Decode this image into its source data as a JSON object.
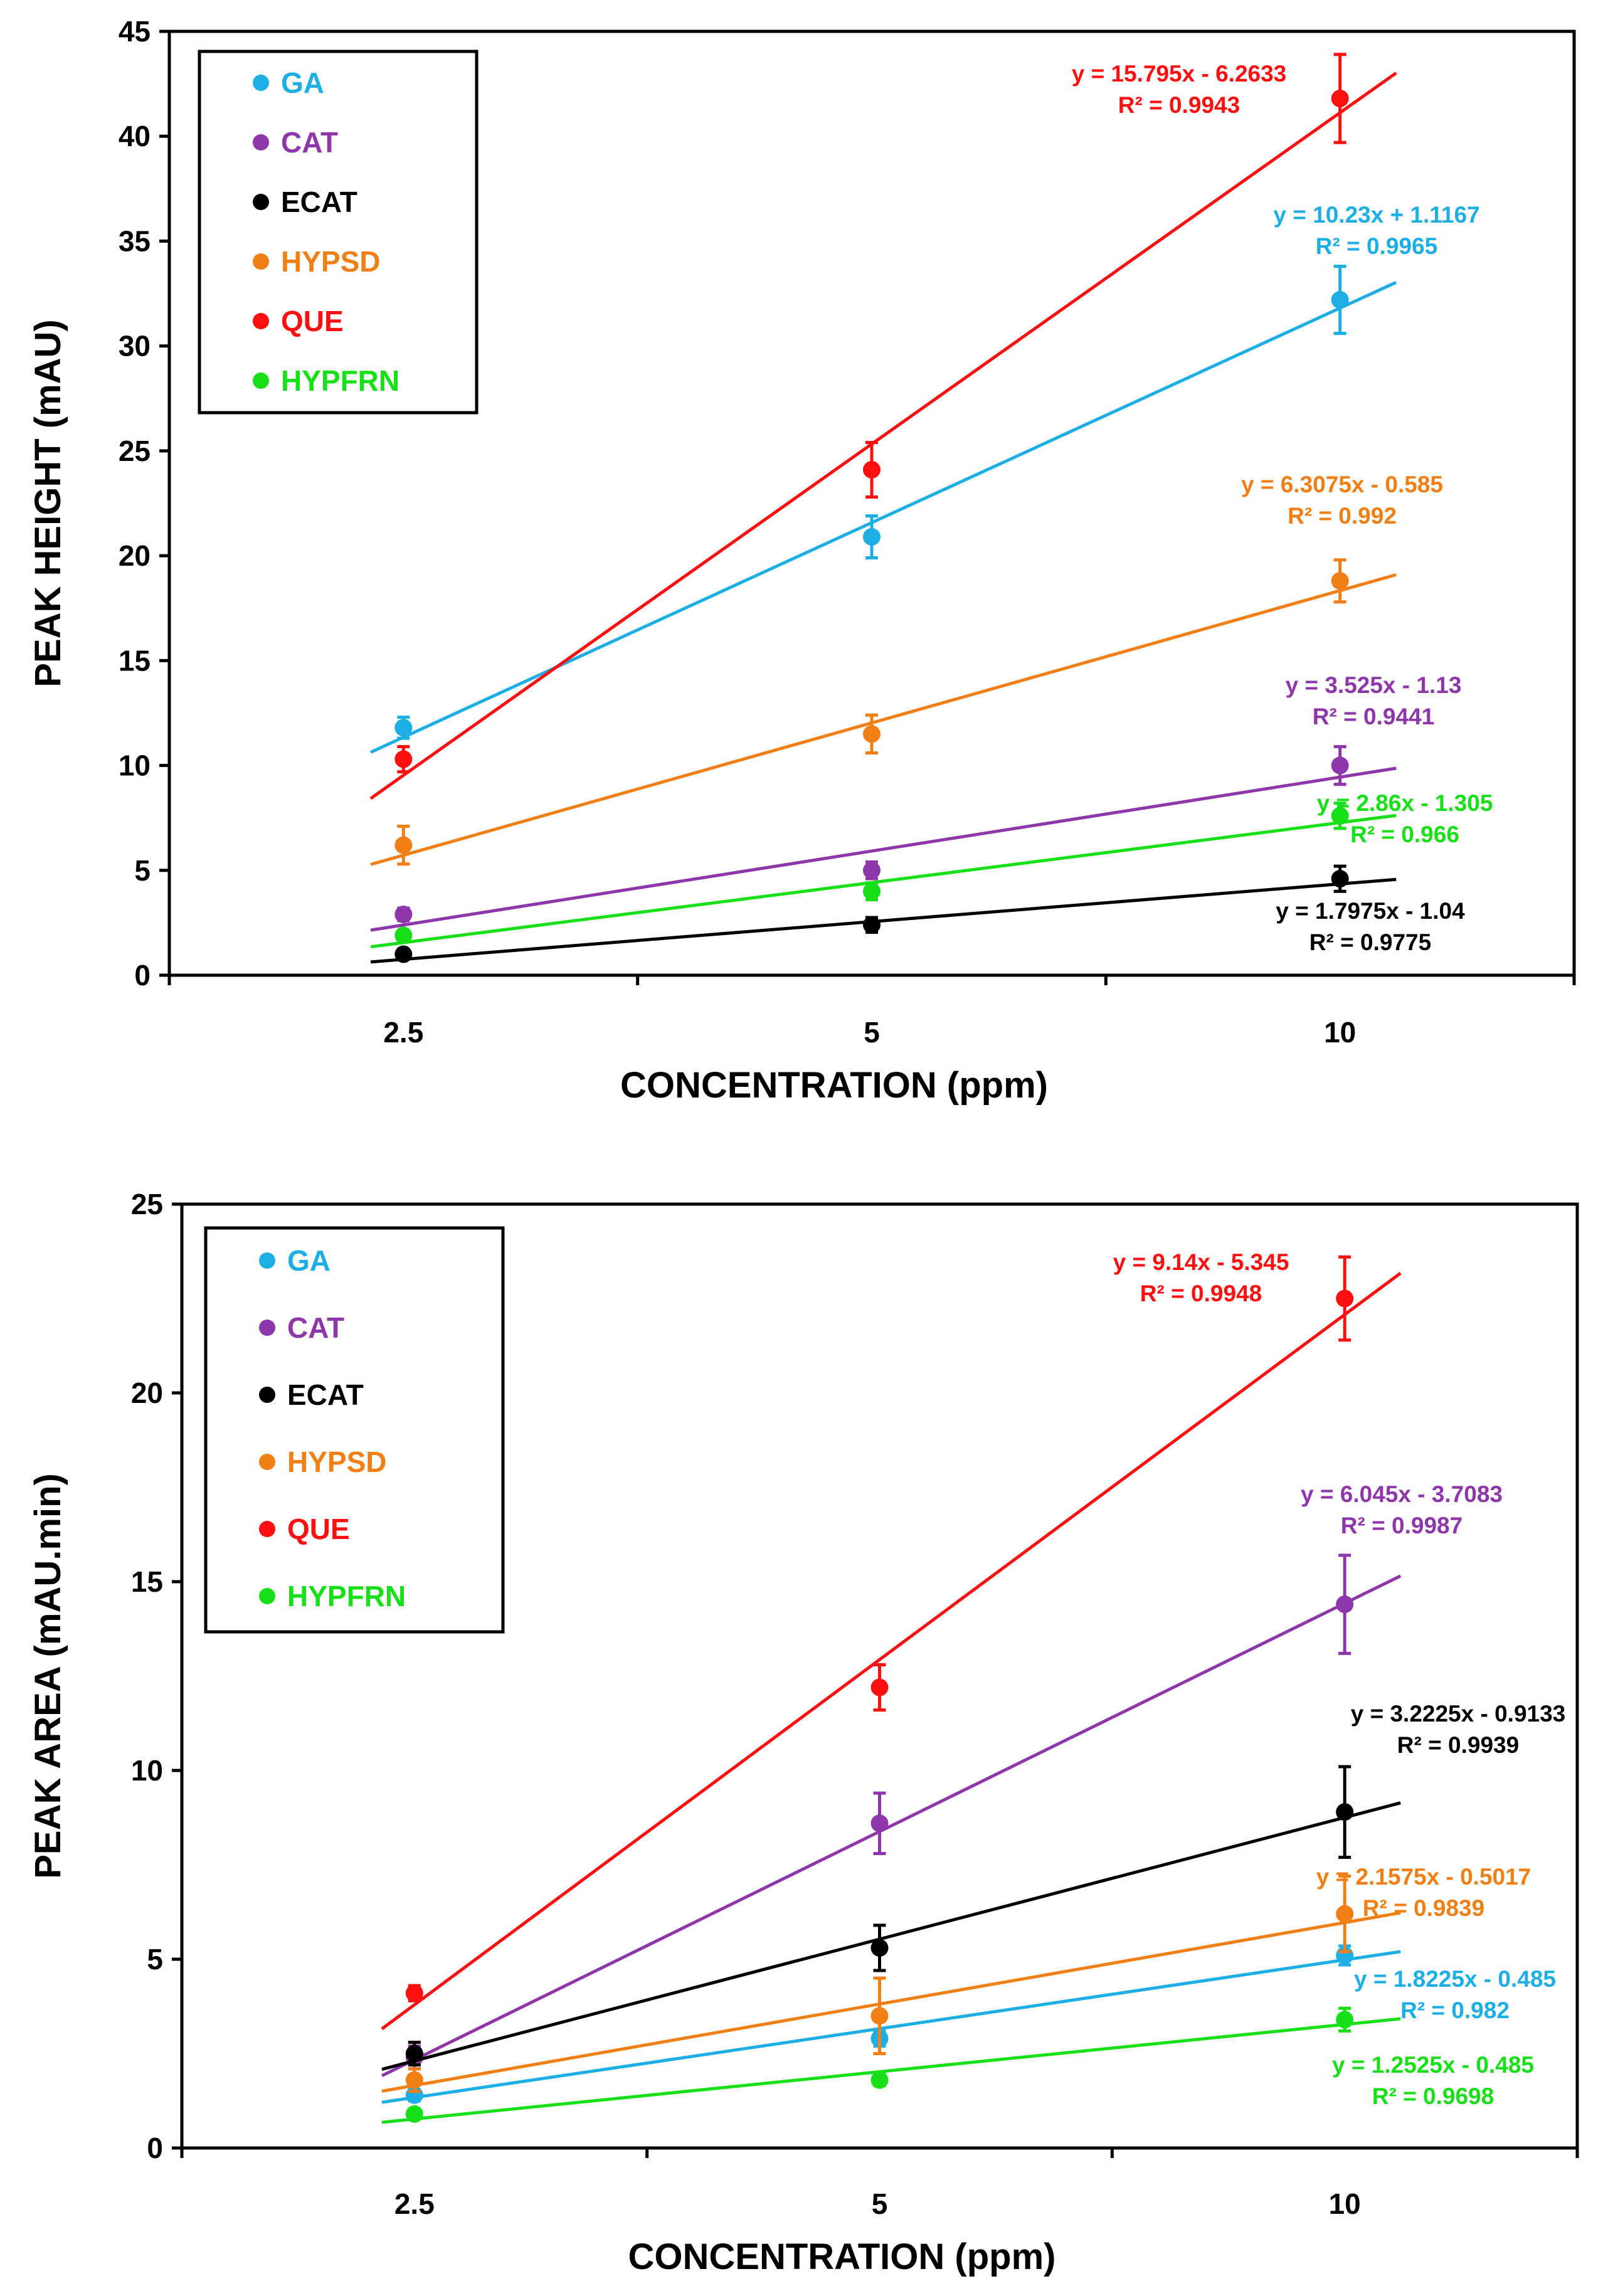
{
  "chart_data": [
    {
      "type": "scatter",
      "xlabel": "CONCENTRATION (ppm)",
      "ylabel": "PEAK HEIGHT (mAU)",
      "ylim": [
        0,
        45
      ],
      "y_ticks": [
        0,
        5,
        10,
        15,
        20,
        25,
        30,
        35,
        40,
        45
      ],
      "categories": [
        "2.5",
        "5",
        "10"
      ],
      "x_positions": [
        1,
        2,
        3
      ],
      "xlim": [
        0.5,
        3.5
      ],
      "grid": false,
      "legend_position": "top-left",
      "series": [
        {
          "name": "GA",
          "color": "#1eaee6",
          "values": [
            11.8,
            20.9,
            32.2
          ],
          "errors": [
            0.5,
            1.0,
            1.6
          ],
          "fit": {
            "slope": 10.23,
            "intercept": 1.1167
          },
          "equation": "y = 10.23x + 1.1167",
          "r2": "R² = 0.9965"
        },
        {
          "name": "CAT",
          "color": "#8e37ab",
          "values": [
            2.9,
            5.0,
            10.0
          ],
          "errors": [
            0.3,
            0.4,
            0.9
          ],
          "fit": {
            "slope": 3.525,
            "intercept": -1.13
          },
          "equation": "y = 3.525x - 1.13",
          "r2": "R² = 0.9441"
        },
        {
          "name": "ECAT",
          "color": "#000000",
          "values": [
            1.0,
            2.4,
            4.6
          ],
          "errors": [
            0.15,
            0.35,
            0.6
          ],
          "fit": {
            "slope": 1.7975,
            "intercept": -1.04
          },
          "equation": "y = 1.7975x - 1.04",
          "r2": "R² = 0.9775"
        },
        {
          "name": "HYPSD",
          "color": "#f07f15",
          "values": [
            6.2,
            11.5,
            18.8
          ],
          "errors": [
            0.9,
            0.9,
            1.0
          ],
          "fit": {
            "slope": 6.3075,
            "intercept": -0.585
          },
          "equation": "y = 6.3075x - 0.585",
          "r2": "R² = 0.992"
        },
        {
          "name": "QUE",
          "color": "#ff1010",
          "values": [
            10.3,
            24.1,
            41.8
          ],
          "errors": [
            0.6,
            1.3,
            2.1
          ],
          "fit": {
            "slope": 15.795,
            "intercept": -6.2633
          },
          "equation": "y = 15.795x - 6.2633",
          "r2": "R² = 0.9943"
        },
        {
          "name": "HYPFRN",
          "color": "#18e018",
          "values": [
            1.9,
            4.0,
            7.6
          ],
          "errors": [
            0.2,
            0.4,
            0.6
          ],
          "fit": {
            "slope": 2.86,
            "intercept": -1.305
          },
          "equation": "y = 2.86x - 1.305",
          "r2": "R² = 0.966"
        }
      ]
    },
    {
      "type": "scatter",
      "xlabel": "CONCENTRATION (ppm)",
      "ylabel": "PEAK AREA (mAU.min)",
      "ylim": [
        0,
        25
      ],
      "y_ticks": [
        0,
        5,
        10,
        15,
        20,
        25
      ],
      "categories": [
        "2.5",
        "5",
        "10"
      ],
      "x_positions": [
        1,
        2,
        3
      ],
      "xlim": [
        0.5,
        3.5
      ],
      "grid": false,
      "legend_position": "top-left",
      "series": [
        {
          "name": "GA",
          "color": "#1eaee6",
          "values": [
            1.4,
            2.9,
            5.1
          ],
          "errors": [
            0.15,
            0.2,
            0.25
          ],
          "fit": {
            "slope": 1.8225,
            "intercept": -0.485
          },
          "equation": "y = 1.8225x - 0.485",
          "r2": "R² = 0.982"
        },
        {
          "name": "CAT",
          "color": "#8e37ab",
          "values": [
            2.4,
            8.6,
            14.4
          ],
          "errors": [
            0.3,
            0.8,
            1.3
          ],
          "fit": {
            "slope": 6.045,
            "intercept": -3.7083
          },
          "equation": "y = 6.045x - 3.7083",
          "r2": "R² = 0.9987"
        },
        {
          "name": "ECAT",
          "color": "#000000",
          "values": [
            2.5,
            5.3,
            8.9
          ],
          "errors": [
            0.3,
            0.6,
            1.2
          ],
          "fit": {
            "slope": 3.2225,
            "intercept": -0.9133
          },
          "equation": "y = 3.2225x - 0.9133",
          "r2": "R² = 0.9939"
        },
        {
          "name": "HYPSD",
          "color": "#f07f15",
          "values": [
            1.8,
            3.5,
            6.2
          ],
          "errors": [
            0.3,
            1.0,
            1.0
          ],
          "fit": {
            "slope": 2.1575,
            "intercept": -0.5017
          },
          "equation": "y = 2.1575x - 0.5017",
          "r2": "R² = 0.9839"
        },
        {
          "name": "QUE",
          "color": "#ff1010",
          "values": [
            4.1,
            12.2,
            22.5
          ],
          "errors": [
            0.2,
            0.6,
            1.1
          ],
          "fit": {
            "slope": 9.14,
            "intercept": -5.345
          },
          "equation": "y = 9.14x - 5.345",
          "r2": "R² = 0.9948"
        },
        {
          "name": "HYPFRN",
          "color": "#18e018",
          "values": [
            0.9,
            1.8,
            3.4
          ],
          "errors": [
            0.1,
            0.15,
            0.3
          ],
          "fit": {
            "slope": 1.2525,
            "intercept": -0.485
          },
          "equation": "y = 1.2525x - 0.485",
          "r2": "R² = 0.9698"
        }
      ]
    }
  ]
}
